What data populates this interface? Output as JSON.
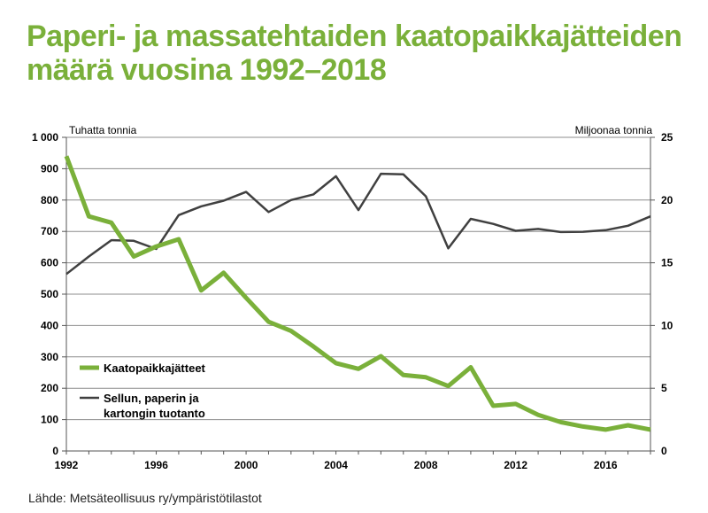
{
  "title_line1": "Paperi- ja massatehtaiden kaatopaikkajätteiden",
  "title_line2": "määrä vuosina 1992–2018",
  "source": "Lähde: Metsäteollisuus ry/ympäristötilastot",
  "colors": {
    "title": "#7ab03a",
    "waste": "#7ab03a",
    "production": "#404040",
    "grid": "#808080"
  },
  "chart_data": {
    "type": "line",
    "x": [
      1992,
      1993,
      1994,
      1995,
      1996,
      1997,
      1998,
      1999,
      2000,
      2001,
      2002,
      2003,
      2004,
      2005,
      2006,
      2007,
      2008,
      2009,
      2010,
      2011,
      2012,
      2013,
      2014,
      2015,
      2016,
      2017,
      2018
    ],
    "xlim": [
      1992,
      2018
    ],
    "xticks": [
      1992,
      1996,
      2000,
      2004,
      2008,
      2012,
      2016
    ],
    "left_axis_label": "Tuhatta tonnia",
    "right_axis_label": "Miljoonaa tonnia",
    "ylim_left": [
      0,
      1000
    ],
    "ylim_right": [
      0,
      25
    ],
    "yticks_left": [
      "0",
      "100",
      "200",
      "300",
      "400",
      "500",
      "600",
      "700",
      "800",
      "900",
      "1 000"
    ],
    "yticks_right": [
      "0",
      "5",
      "10",
      "15",
      "20",
      "25"
    ],
    "series": [
      {
        "name": "Kaatopaikkajätteet",
        "axis": "left",
        "values": [
          940,
          748,
          728,
          620,
          652,
          675,
          512,
          568,
          488,
          412,
          383,
          333,
          280,
          262,
          302,
          242,
          235,
          207,
          267,
          144,
          150,
          115,
          92,
          78,
          68,
          82,
          68
        ]
      },
      {
        "name_line1": "Sellun, paperin ja",
        "name_line2": "kartongin tuotanto",
        "axis": "right",
        "values": [
          14.1,
          15.5,
          16.8,
          16.75,
          16.1,
          18.8,
          19.5,
          19.95,
          20.65,
          19.05,
          20.0,
          20.45,
          21.9,
          19.2,
          22.1,
          22.05,
          20.3,
          16.15,
          18.5,
          18.1,
          17.55,
          17.7,
          17.45,
          17.47,
          17.6,
          17.95,
          18.7
        ]
      }
    ]
  }
}
